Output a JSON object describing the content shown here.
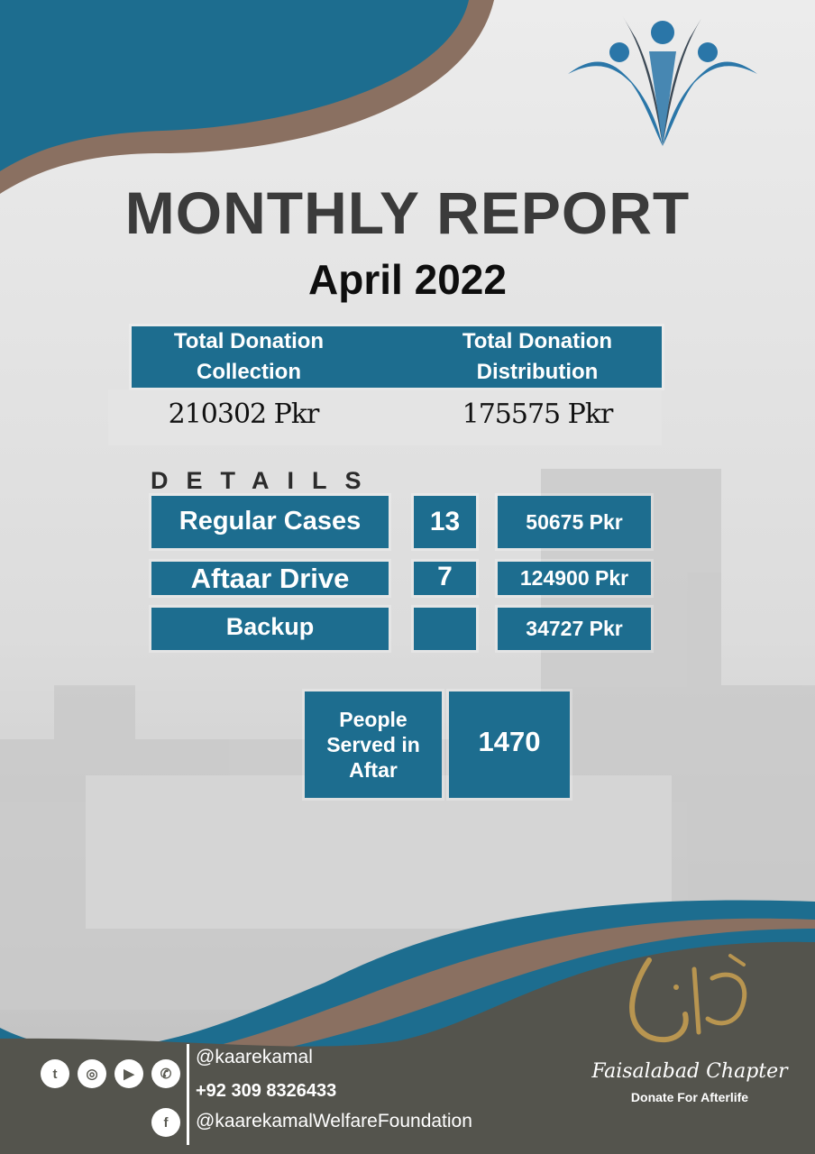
{
  "header": {
    "title": "MONTHLY REPORT",
    "subtitle": "April 2022"
  },
  "summary": {
    "collection_label": "Total Donation Collection",
    "distribution_label": "Total Donation Distribution",
    "collection_value": "210302 Pkr",
    "distribution_value": "175575 Pkr"
  },
  "details": {
    "heading": "DETAILS",
    "rows": [
      {
        "label": "Regular Cases",
        "count": "13",
        "amount": "50675 Pkr"
      },
      {
        "label": "Aftaar Drive",
        "count": "7",
        "amount": "124900 Pkr"
      },
      {
        "label": "Backup",
        "count": "",
        "amount": "34727 Pkr"
      }
    ]
  },
  "people": {
    "label": "People Served in Aftar",
    "value": "1470"
  },
  "footer": {
    "handle": "@kaarekamal",
    "phone": "+92 309 8326433",
    "facebook": "@kaarekamalWelfareFoundation",
    "chapter": "Faisalabad Chapter",
    "tagline": "Donate For Afterlife",
    "social_icons": [
      "twitter-icon",
      "instagram-icon",
      "youtube-icon",
      "whatsapp-icon",
      "facebook-icon"
    ]
  },
  "colors": {
    "teal": "#1d6d8f",
    "brown": "#8a7061",
    "dark_gray": "#54544d",
    "gold": "#b89550"
  }
}
